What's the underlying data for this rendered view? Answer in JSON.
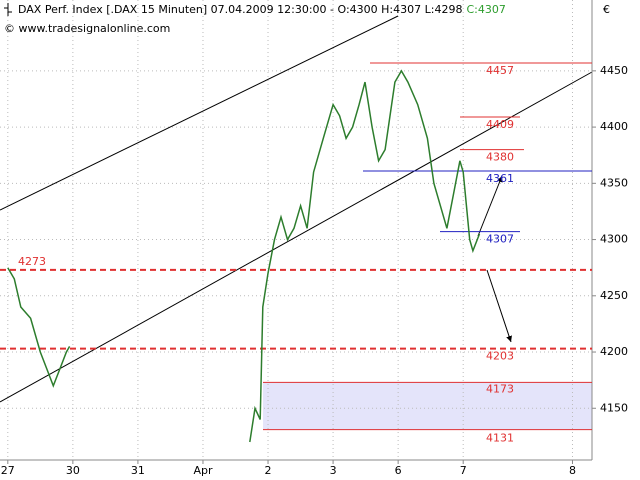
{
  "chart_data": {
    "type": "line",
    "title": "DAX Perf. Index [.DAX  15 Minuten] 07.04.2009 12:30:00 - O:4300 H:4307 L:4298",
    "last_close": "C:4307",
    "source": "© www.tradesignalonline.com",
    "currency": "€",
    "series": [
      {
        "name": "DAX",
        "color": "#2d7d2d",
        "x": [
          0.0,
          0.1,
          0.2,
          0.35,
          0.5,
          0.6,
          0.7,
          0.8,
          0.9,
          0.95,
          null,
          3.72,
          3.8,
          3.88,
          3.92,
          4.0,
          4.1,
          4.2,
          4.3,
          4.4,
          4.5,
          4.6,
          4.7,
          4.85,
          5.0,
          5.1,
          5.2,
          5.3,
          5.4,
          5.49,
          5.6,
          5.7,
          5.8,
          5.95,
          6.05,
          6.15,
          6.3,
          6.45,
          6.55,
          6.65,
          6.75,
          6.85,
          6.95,
          7.0,
          7.1,
          7.15,
          7.25
        ],
        "values": [
          4275,
          4265,
          4240,
          4230,
          4200,
          4185,
          4170,
          4185,
          4200,
          4205,
          null,
          4120,
          4150,
          4140,
          4240,
          4270,
          4300,
          4320,
          4300,
          4310,
          4330,
          4310,
          4360,
          4390,
          4420,
          4410,
          4390,
          4400,
          4420,
          4440,
          4400,
          4370,
          4380,
          4440,
          4450,
          4440,
          4420,
          4390,
          4350,
          4330,
          4310,
          4340,
          4370,
          4360,
          4300,
          4290,
          4305
        ]
      }
    ],
    "levels": [
      {
        "value": 4457,
        "color": "#e03030"
      },
      {
        "value": 4409,
        "color": "#e03030"
      },
      {
        "value": 4380,
        "color": "#e03030"
      },
      {
        "value": 4361,
        "color": "#2020c0"
      },
      {
        "value": 4307,
        "color": "#2020c0"
      },
      {
        "value": 4273,
        "color": "#e03030",
        "dashed": true
      },
      {
        "value": 4203,
        "color": "#e03030",
        "dashed": true
      },
      {
        "value": 4173,
        "color": "#e03030"
      },
      {
        "value": 4131,
        "color": "#e03030"
      }
    ],
    "zone": {
      "from": 4131,
      "to": 4173,
      "color": "#e4e4fa"
    },
    "xlim": [
      -0.12,
      8.98
    ],
    "xticks": [
      {
        "value": 0,
        "label": "27"
      },
      {
        "value": 1,
        "label": "30"
      },
      {
        "value": 2,
        "label": "31"
      },
      {
        "value": 3,
        "label": "Apr"
      },
      {
        "value": 4,
        "label": "2"
      },
      {
        "value": 5,
        "label": "3"
      },
      {
        "value": 6,
        "label": "6"
      },
      {
        "value": 7,
        "label": "7"
      },
      {
        "value": 8.68,
        "label": "8"
      }
    ],
    "ylim": [
      4104,
      4513
    ],
    "yticks": [
      4150,
      4200,
      4250,
      4300,
      4350,
      4400,
      4450
    ],
    "grid": true
  }
}
